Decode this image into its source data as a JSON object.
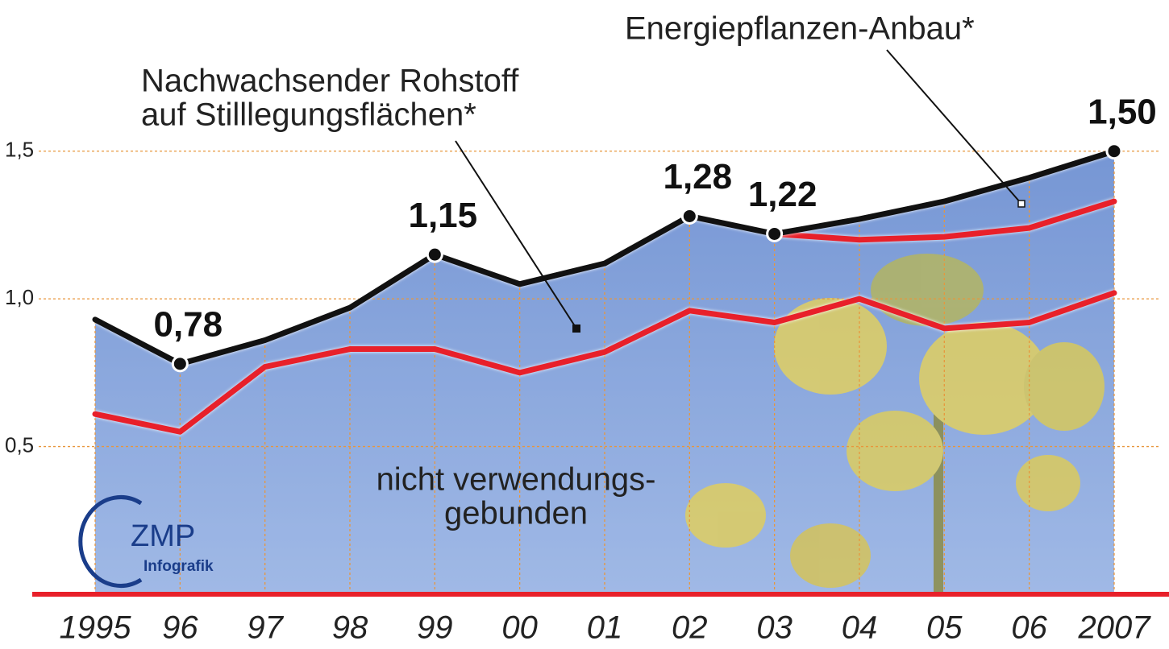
{
  "chart_data": {
    "type": "line",
    "categories": [
      "1995",
      "96",
      "97",
      "98",
      "99",
      "00",
      "01",
      "02",
      "03",
      "04",
      "05",
      "06",
      "2007"
    ],
    "series": [
      {
        "color": "#111111",
        "values": [
          0.93,
          0.78,
          0.86,
          0.97,
          1.15,
          1.05,
          1.12,
          1.28,
          1.22,
          1.27,
          1.33,
          1.41,
          1.5
        ],
        "value_labels": [
          null,
          "0,78",
          null,
          null,
          "1,15",
          null,
          null,
          "1,28",
          "1,22",
          null,
          null,
          null,
          "1,50"
        ]
      },
      {
        "color": "#e8202a",
        "values": [
          null,
          null,
          null,
          null,
          null,
          null,
          null,
          null,
          1.22,
          1.2,
          1.21,
          1.24,
          1.33
        ]
      },
      {
        "color": "#e8202a",
        "values": [
          0.61,
          0.55,
          0.77,
          0.83,
          0.83,
          0.75,
          0.82,
          0.96,
          0.92,
          1.0,
          0.9,
          0.92,
          1.02
        ]
      }
    ],
    "ylim": [
      0,
      1.9
    ],
    "yticks": [
      {
        "value": 0.5,
        "label": "0,5"
      },
      {
        "value": 1.0,
        "label": "1,0"
      },
      {
        "value": 1.5,
        "label": "1,5"
      }
    ],
    "grid": true,
    "area_color": "#7c9cd8",
    "annotations": [
      "Energiepflanzen-Anbau*",
      "Nachwachsender Rohstoff",
      "auf Stilllegungsflächen*",
      "nicht verwendungs-",
      "gebunden"
    ],
    "logo": {
      "name": "ZMP",
      "subtitle": "Infografik"
    }
  }
}
